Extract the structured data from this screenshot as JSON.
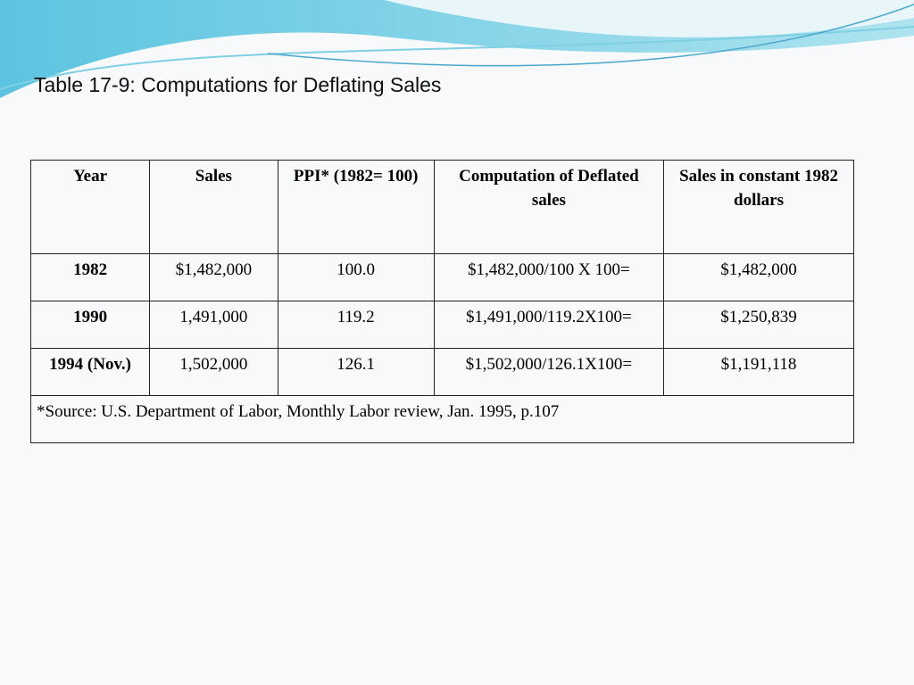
{
  "header": {
    "title": "Table 17-9: Computations for Deflating Sales"
  },
  "table": {
    "columns": [
      "Year",
      "Sales",
      "PPI* (1982= 100)",
      "Computation of Deflated sales",
      "Sales in constant 1982 dollars"
    ],
    "rows": [
      [
        "1982",
        "$1,482,000",
        "100.0",
        "$1,482,000/100 X 100=",
        "$1,482,000"
      ],
      [
        "1990",
        "1,491,000",
        "119.2",
        "$1,491,000/119.2X100=",
        "$1,250,839"
      ],
      [
        "1994 (Nov.)",
        "1,502,000",
        "126.1",
        "$1,502,000/126.1X100=",
        "$1,191,118"
      ]
    ],
    "note": "*Source: U.S. Department of Labor, Monthly Labor review, Jan. 1995, p.107"
  }
}
